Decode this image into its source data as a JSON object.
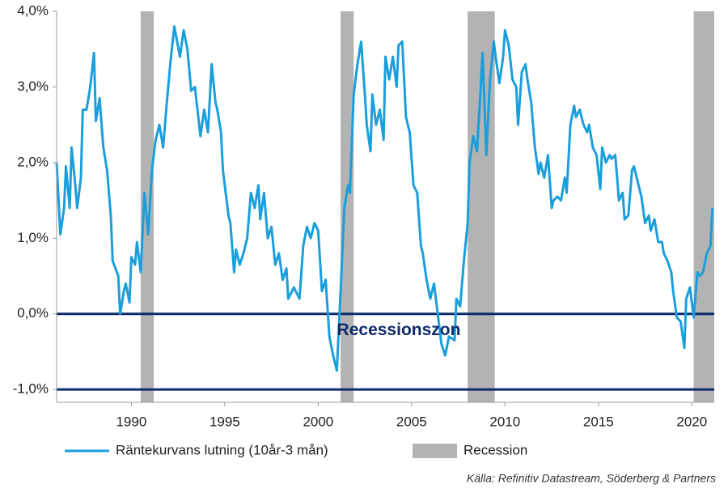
{
  "chart_data": {
    "type": "line",
    "xlim": [
      1986,
      2021.2
    ],
    "ylim": [
      -1.17,
      4.0
    ],
    "xticks": [
      1990,
      1995,
      2000,
      2005,
      2010,
      2015,
      2020
    ],
    "yticks": [
      {
        "value": -1,
        "label": "-1,0%"
      },
      {
        "value": 0,
        "label": "0,0%"
      },
      {
        "value": 1,
        "label": "1,0%"
      },
      {
        "value": 2,
        "label": "2,0%"
      },
      {
        "value": 3,
        "label": "3,0%"
      },
      {
        "value": 4,
        "label": "4,0%"
      }
    ],
    "x": [
      1986.0,
      1986.2,
      1986.4,
      1986.5,
      1986.7,
      1986.8,
      1987.0,
      1987.1,
      1987.3,
      1987.4,
      1987.6,
      1987.8,
      1988.0,
      1988.1,
      1988.3,
      1988.5,
      1988.7,
      1988.9,
      1989.0,
      1989.3,
      1989.4,
      1989.6,
      1989.7,
      1989.9,
      1990.0,
      1990.2,
      1990.3,
      1990.5,
      1990.7,
      1990.9,
      1991.1,
      1991.3,
      1991.5,
      1991.7,
      1991.9,
      1992.1,
      1992.3,
      1992.6,
      1992.8,
      1993.0,
      1993.2,
      1993.4,
      1993.7,
      1993.9,
      1994.1,
      1994.3,
      1994.5,
      1994.6,
      1994.8,
      1994.9,
      1995.2,
      1995.3,
      1995.5,
      1995.6,
      1995.8,
      1996.0,
      1996.2,
      1996.4,
      1996.6,
      1996.8,
      1996.9,
      1997.1,
      1997.3,
      1997.5,
      1997.7,
      1997.9,
      1998.1,
      1998.3,
      1998.4,
      1998.7,
      1999.0,
      1999.2,
      1999.4,
      1999.6,
      1999.8,
      2000.0,
      2000.2,
      2000.4,
      2000.6,
      2000.8,
      2001.0,
      2001.2,
      2001.4,
      2001.6,
      2001.7,
      2001.9,
      2002.1,
      2002.3,
      2002.5,
      2002.6,
      2002.8,
      2002.9,
      2003.1,
      2003.3,
      2003.5,
      2003.6,
      2003.8,
      2004.0,
      2004.2,
      2004.3,
      2004.5,
      2004.7,
      2004.9,
      2005.1,
      2005.3,
      2005.5,
      2005.6,
      2005.8,
      2006.0,
      2006.2,
      2006.4,
      2006.6,
      2006.8,
      2007.0,
      2007.3,
      2007.4,
      2007.6,
      2007.8,
      2008.0,
      2008.1,
      2008.3,
      2008.5,
      2008.7,
      2008.8,
      2009.0,
      2009.2,
      2009.4,
      2009.5,
      2009.7,
      2009.9,
      2010.0,
      2010.2,
      2010.4,
      2010.6,
      2010.7,
      2010.9,
      2011.1,
      2011.2,
      2011.4,
      2011.6,
      2011.8,
      2011.9,
      2012.1,
      2012.3,
      2012.5,
      2012.6,
      2012.8,
      2013.0,
      2013.2,
      2013.3,
      2013.5,
      2013.7,
      2013.8,
      2014.0,
      2014.2,
      2014.4,
      2014.5,
      2014.7,
      2014.9,
      2015.1,
      2015.2,
      2015.4,
      2015.6,
      2015.7,
      2015.9,
      2016.1,
      2016.3,
      2016.4,
      2016.6,
      2016.8,
      2016.9,
      2017.1,
      2017.3,
      2017.5,
      2017.7,
      2017.8,
      2018.0,
      2018.2,
      2018.4,
      2018.5,
      2018.7,
      2018.9,
      2019.0,
      2019.2,
      2019.4,
      2019.6,
      2019.7,
      2019.9,
      2020.1,
      2020.3,
      2020.4,
      2020.6,
      2020.8,
      2021.0,
      2021.1
    ],
    "series": [
      {
        "name": "Räntekurvans lutning (10år-3 mån)",
        "color": "#1a9fdc",
        "values": [
          2.0,
          1.05,
          1.4,
          1.95,
          1.4,
          2.2,
          1.7,
          1.4,
          1.8,
          2.7,
          2.7,
          3.0,
          3.45,
          2.55,
          2.85,
          2.2,
          1.9,
          1.3,
          0.7,
          0.5,
          0.0,
          0.3,
          0.4,
          0.15,
          0.75,
          0.65,
          0.95,
          0.55,
          1.6,
          1.05,
          1.9,
          2.3,
          2.5,
          2.2,
          2.8,
          3.35,
          3.8,
          3.4,
          3.75,
          3.5,
          2.95,
          3.0,
          2.35,
          2.7,
          2.4,
          3.3,
          2.8,
          2.7,
          2.4,
          1.9,
          1.3,
          1.2,
          0.55,
          0.85,
          0.65,
          0.8,
          1.0,
          1.6,
          1.4,
          1.7,
          1.25,
          1.6,
          1.0,
          1.15,
          0.65,
          0.8,
          0.45,
          0.6,
          0.2,
          0.35,
          0.2,
          0.9,
          1.15,
          1.0,
          1.2,
          1.1,
          0.3,
          0.45,
          -0.3,
          -0.55,
          -0.75,
          0.3,
          1.4,
          1.7,
          1.6,
          2.9,
          3.3,
          3.6,
          2.9,
          2.5,
          2.15,
          2.9,
          2.5,
          2.7,
          2.3,
          3.4,
          3.1,
          3.4,
          3.0,
          3.55,
          3.6,
          2.6,
          2.4,
          1.7,
          1.6,
          0.9,
          0.8,
          0.45,
          0.2,
          0.4,
          0.0,
          -0.4,
          -0.55,
          -0.3,
          -0.35,
          0.2,
          0.1,
          0.7,
          1.2,
          2.0,
          2.35,
          2.15,
          3.0,
          3.45,
          2.1,
          3.1,
          3.6,
          3.4,
          3.05,
          3.4,
          3.75,
          3.55,
          3.1,
          3.0,
          2.5,
          3.2,
          3.3,
          3.1,
          2.8,
          2.2,
          1.85,
          2.0,
          1.8,
          2.1,
          1.4,
          1.5,
          1.55,
          1.5,
          1.8,
          1.6,
          2.5,
          2.75,
          2.6,
          2.7,
          2.5,
          2.4,
          2.5,
          2.2,
          2.1,
          1.65,
          2.2,
          2.0,
          2.1,
          2.05,
          2.1,
          1.5,
          1.6,
          1.25,
          1.3,
          1.9,
          1.95,
          1.75,
          1.55,
          1.2,
          1.3,
          1.1,
          1.25,
          0.95,
          0.95,
          0.8,
          0.7,
          0.55,
          0.3,
          -0.05,
          -0.1,
          -0.45,
          0.2,
          0.35,
          -0.05,
          0.55,
          0.5,
          0.55,
          0.8,
          0.9,
          1.4
        ]
      }
    ],
    "recessions": {
      "name": "Recession",
      "color": "#b3b3b3",
      "ranges": [
        [
          1990.5,
          1991.2
        ],
        [
          2001.2,
          2001.9
        ],
        [
          2008.0,
          2009.45
        ],
        [
          2020.1,
          2021.2
        ]
      ]
    },
    "reference_lines": {
      "values": [
        0,
        -1
      ],
      "color": "#0d2b6b"
    },
    "annotation": "Recessionszon",
    "source": "Källa: Refinitiv Datastream, Söderberg & Partners"
  }
}
